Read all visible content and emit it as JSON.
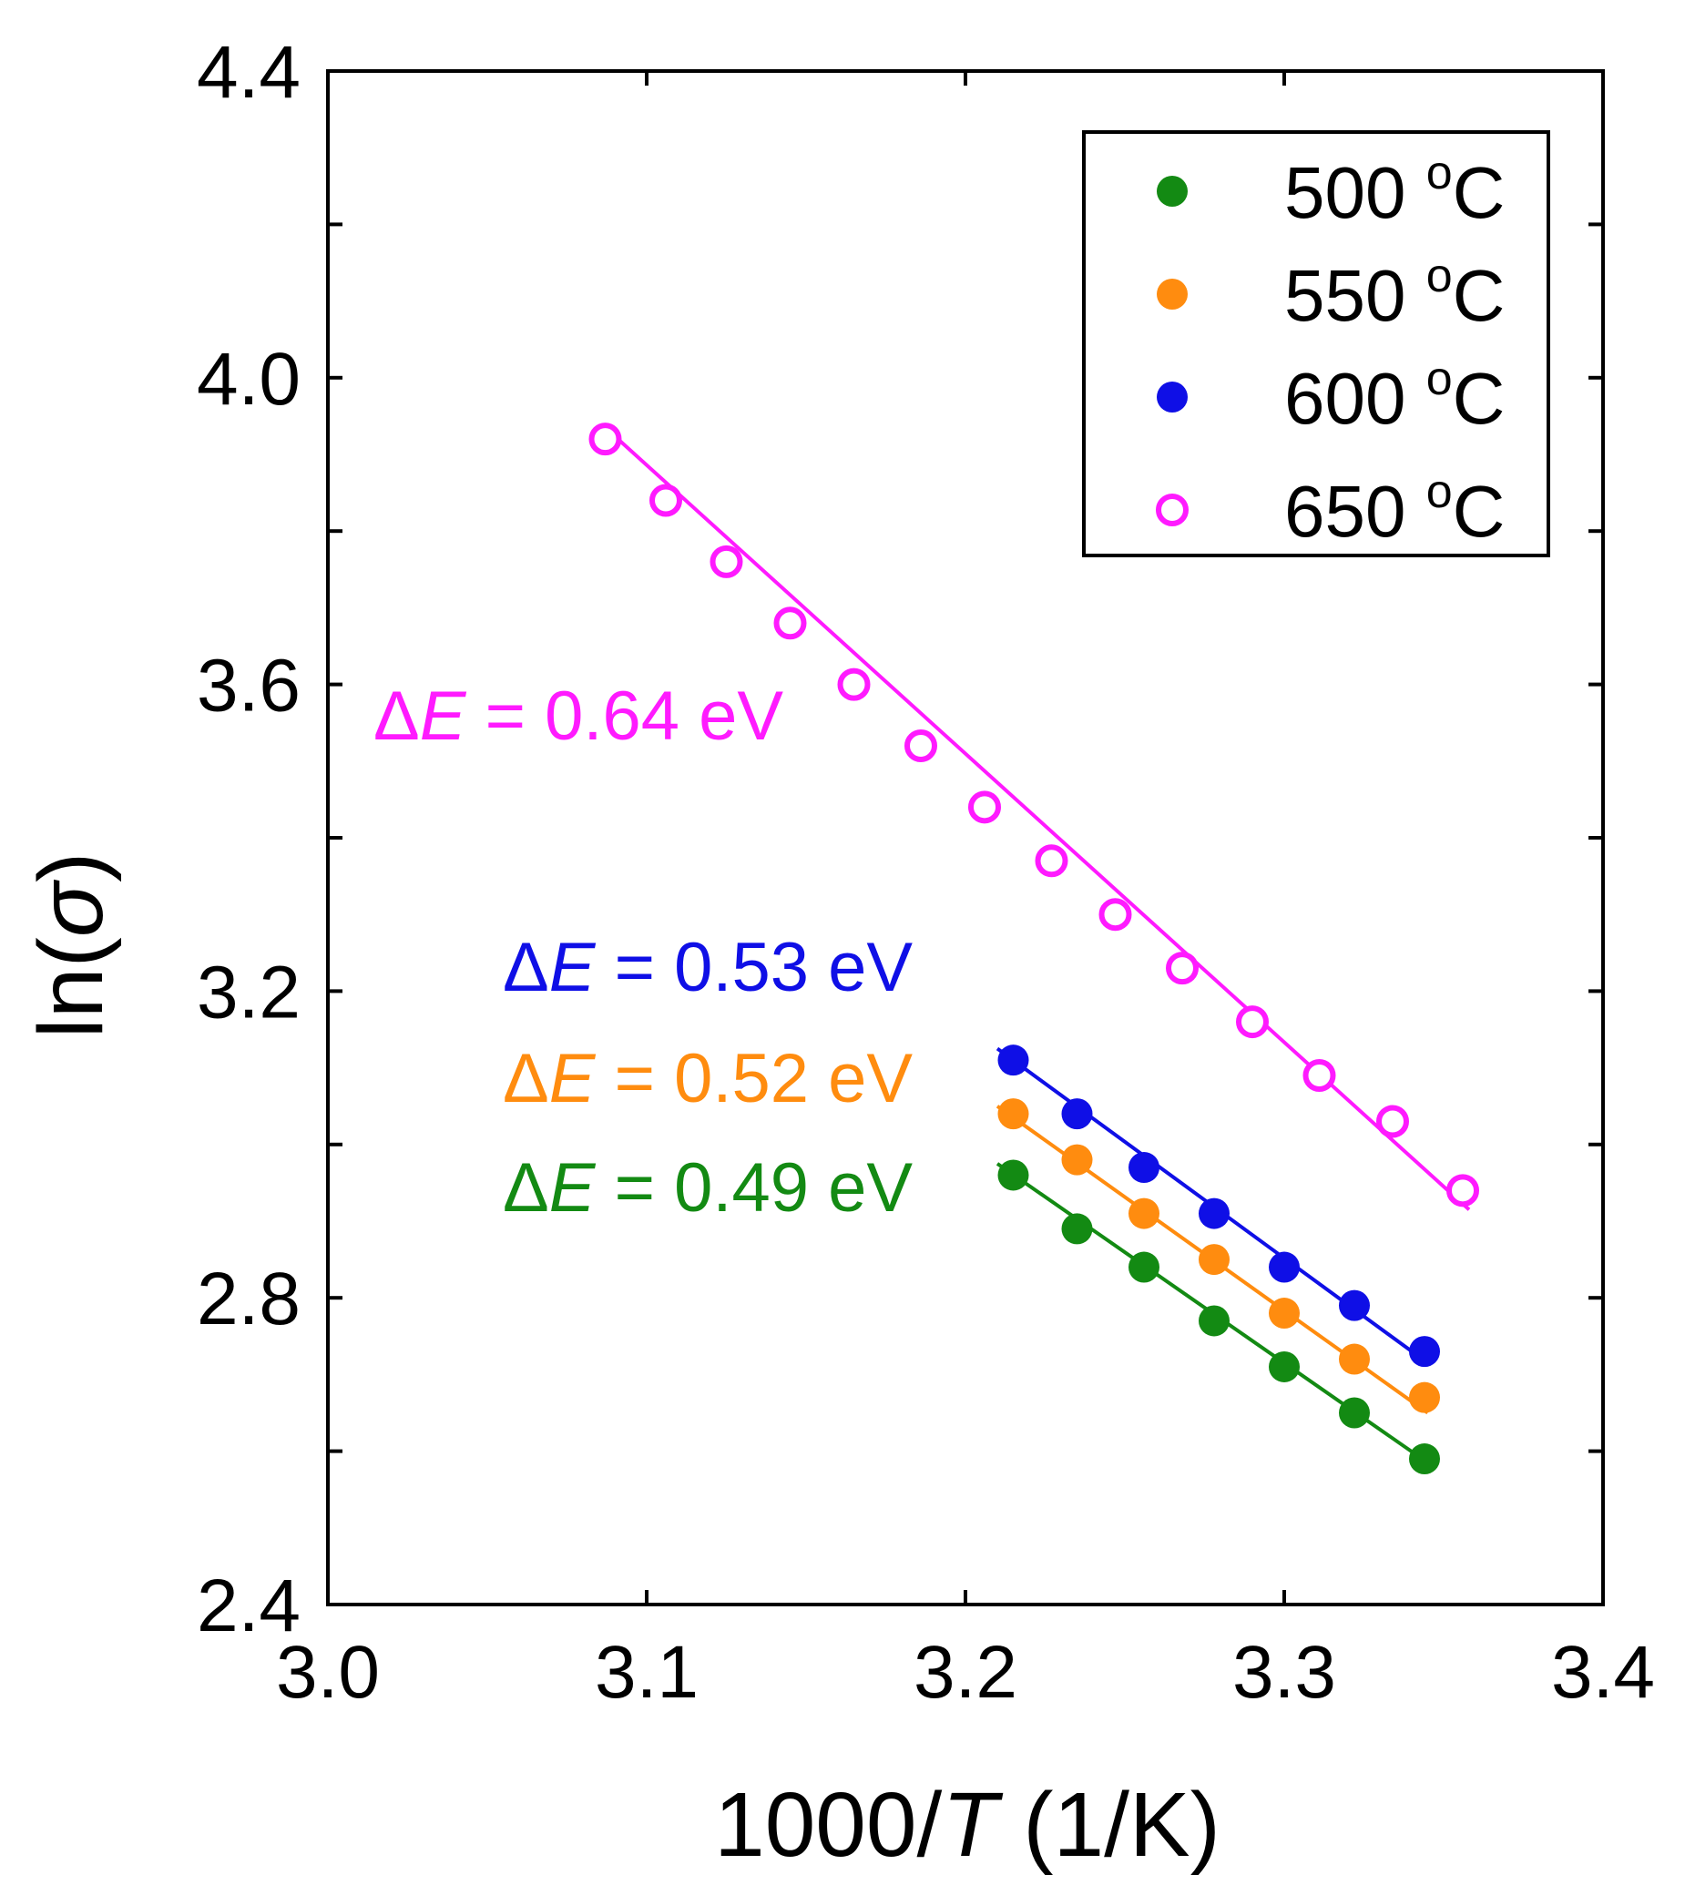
{
  "chart_data": {
    "type": "scatter",
    "title": "",
    "xlabel_prefix": "1000/",
    "xlabel_italic": "T",
    "xlabel_suffix": " (1/K)",
    "ylabel_prefix": "ln(",
    "ylabel_italic": "σ",
    "ylabel_suffix": ")",
    "xlim": [
      3.0,
      3.4
    ],
    "ylim": [
      2.4,
      4.4
    ],
    "xticks": [
      3.0,
      3.1,
      3.2,
      3.3,
      3.4
    ],
    "xtick_labels": [
      "3.0",
      "3.1",
      "3.2",
      "3.3",
      "3.4"
    ],
    "yticks": [
      2.4,
      2.8,
      3.2,
      3.6,
      4.0,
      4.4
    ],
    "ytick_labels": [
      "2.4",
      "2.8",
      "3.2",
      "3.6",
      "4.0",
      "4.4"
    ],
    "grid": false,
    "legend_position": "top-right",
    "series": [
      {
        "name": "500 °C",
        "legend_value": "500",
        "legend_unit_sup": "o",
        "legend_unit": "C",
        "color": "#138a13",
        "marker": "filled-circle",
        "x": [
          3.215,
          3.235,
          3.256,
          3.278,
          3.3,
          3.322,
          3.344
        ],
        "y": [
          2.96,
          2.89,
          2.84,
          2.77,
          2.71,
          2.65,
          2.59
        ],
        "fit": {
          "x0": 3.21,
          "y0": 2.975,
          "x1": 3.345,
          "y1": 2.585
        },
        "activation_energy_label": {
          "prefix": "Δ",
          "italic": "E",
          "text": " = 0.49 eV"
        }
      },
      {
        "name": "550 °C",
        "legend_value": "550",
        "legend_unit_sup": "o",
        "legend_unit": "C",
        "color": "#ff8c0f",
        "marker": "filled-circle",
        "x": [
          3.215,
          3.235,
          3.256,
          3.278,
          3.3,
          3.322,
          3.344
        ],
        "y": [
          3.04,
          2.98,
          2.91,
          2.85,
          2.78,
          2.72,
          2.67
        ],
        "fit": {
          "x0": 3.21,
          "y0": 3.05,
          "x1": 3.345,
          "y1": 2.65
        },
        "activation_energy_label": {
          "prefix": "Δ",
          "italic": "E",
          "text": " = 0.52 eV"
        }
      },
      {
        "name": "600 °C",
        "legend_value": "600",
        "legend_unit_sup": "o",
        "legend_unit": "C",
        "color": "#0f0fe6",
        "marker": "filled-circle",
        "x": [
          3.215,
          3.235,
          3.256,
          3.278,
          3.3,
          3.322,
          3.344
        ],
        "y": [
          3.11,
          3.04,
          2.97,
          2.91,
          2.84,
          2.79,
          2.73
        ],
        "fit": {
          "x0": 3.21,
          "y0": 3.125,
          "x1": 3.345,
          "y1": 2.715
        },
        "activation_energy_label": {
          "prefix": "Δ",
          "italic": "E",
          "text": " = 0.53 eV"
        }
      },
      {
        "name": "650 °C",
        "legend_value": "650",
        "legend_unit_sup": "o",
        "legend_unit": "C",
        "color": "#ff1aff",
        "marker": "open-circle",
        "x": [
          3.087,
          3.106,
          3.125,
          3.145,
          3.165,
          3.186,
          3.206,
          3.227,
          3.247,
          3.268,
          3.29,
          3.311,
          3.334,
          3.356
        ],
        "y": [
          3.92,
          3.84,
          3.76,
          3.68,
          3.6,
          3.52,
          3.44,
          3.37,
          3.3,
          3.23,
          3.16,
          3.09,
          3.03,
          2.94
        ],
        "fit": {
          "x0": 3.087,
          "y0": 3.935,
          "x1": 3.358,
          "y1": 2.915
        },
        "activation_energy_label": {
          "prefix": "Δ",
          "italic": "E",
          "text": " = 0.64 eV"
        }
      }
    ]
  }
}
